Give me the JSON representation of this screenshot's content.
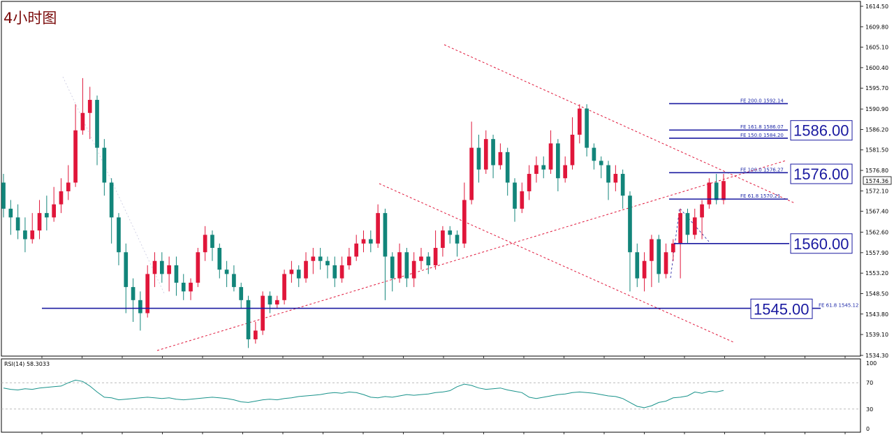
{
  "title": "4小时图",
  "price_tag": "1574.36",
  "rsi_label": "RSI(14) 58.3033",
  "colors": {
    "up": "#e0163a",
    "down": "#12857a",
    "line_blue": "#1a1aa0",
    "dash_red": "#e0163a",
    "rsi_line": "#17928a"
  },
  "chart_data": {
    "type": "candlestick",
    "title": "4小时图",
    "ylim": [
      1534.3,
      1614.5
    ],
    "y_ticks": [
      "1614.50",
      "1609.80",
      "1605.10",
      "1600.40",
      "1595.70",
      "1590.90",
      "1586.20",
      "1581.50",
      "1576.80",
      "1572.10",
      "1567.40",
      "1562.60",
      "1557.90",
      "1553.20",
      "1548.50",
      "1543.80",
      "1539.10",
      "1534.30"
    ],
    "current_price": 1574.36,
    "candles": [
      [
        1574,
        1568,
        1576,
        1566
      ],
      [
        1568,
        1566,
        1570,
        1562
      ],
      [
        1566,
        1563,
        1569,
        1561
      ],
      [
        1563,
        1561,
        1566,
        1558
      ],
      [
        1561,
        1563,
        1567,
        1560
      ],
      [
        1563,
        1567,
        1570,
        1561
      ],
      [
        1567,
        1566,
        1571,
        1563
      ],
      [
        1566,
        1569,
        1573,
        1565
      ],
      [
        1569,
        1572,
        1575,
        1567
      ],
      [
        1572,
        1574,
        1578,
        1570
      ],
      [
        1574,
        1586,
        1592,
        1573
      ],
      [
        1586,
        1590,
        1598,
        1585
      ],
      [
        1590,
        1593,
        1596,
        1584
      ],
      [
        1593,
        1582,
        1594,
        1578
      ],
      [
        1582,
        1574,
        1584,
        1571
      ],
      [
        1574,
        1566,
        1575,
        1560
      ],
      [
        1566,
        1558,
        1567,
        1555
      ],
      [
        1558,
        1550,
        1560,
        1544
      ],
      [
        1550,
        1547,
        1552,
        1542
      ],
      [
        1547,
        1544,
        1549,
        1540
      ],
      [
        1544,
        1553,
        1555,
        1543
      ],
      [
        1553,
        1556,
        1558,
        1550
      ],
      [
        1556,
        1553,
        1558,
        1551
      ],
      [
        1553,
        1555,
        1557,
        1549
      ],
      [
        1555,
        1551,
        1557,
        1548
      ],
      [
        1551,
        1549,
        1553,
        1547
      ],
      [
        1549,
        1551,
        1552,
        1547
      ],
      [
        1551,
        1558,
        1559,
        1550
      ],
      [
        1558,
        1562,
        1564,
        1556
      ],
      [
        1562,
        1559,
        1563,
        1556
      ],
      [
        1559,
        1554,
        1560,
        1552
      ],
      [
        1554,
        1553,
        1556,
        1550
      ],
      [
        1553,
        1550,
        1555,
        1549
      ],
      [
        1550,
        1547,
        1551,
        1545
      ],
      [
        1547,
        1538,
        1548,
        1536
      ],
      [
        1538,
        1540,
        1542,
        1537
      ],
      [
        1540,
        1548,
        1549,
        1539
      ],
      [
        1548,
        1546,
        1549,
        1544
      ],
      [
        1546,
        1547,
        1548,
        1545
      ],
      [
        1547,
        1553,
        1554,
        1546
      ],
      [
        1553,
        1554,
        1556,
        1551
      ],
      [
        1554,
        1552,
        1555,
        1550
      ],
      [
        1552,
        1556,
        1558,
        1551
      ],
      [
        1556,
        1557,
        1559,
        1553
      ],
      [
        1557,
        1556,
        1559,
        1554
      ],
      [
        1556,
        1555,
        1557,
        1552
      ],
      [
        1555,
        1552,
        1557,
        1550
      ],
      [
        1552,
        1555,
        1557,
        1551
      ],
      [
        1555,
        1557,
        1559,
        1554
      ],
      [
        1557,
        1560,
        1562,
        1556
      ],
      [
        1560,
        1561,
        1563,
        1558
      ],
      [
        1561,
        1560,
        1563,
        1558
      ],
      [
        1560,
        1567,
        1569,
        1559
      ],
      [
        1567,
        1557,
        1568,
        1547
      ],
      [
        1557,
        1552,
        1558,
        1549
      ],
      [
        1552,
        1558,
        1560,
        1551
      ],
      [
        1558,
        1552,
        1559,
        1550
      ],
      [
        1552,
        1556,
        1558,
        1550
      ],
      [
        1556,
        1557,
        1559,
        1554
      ],
      [
        1557,
        1555,
        1558,
        1553
      ],
      [
        1555,
        1559,
        1563,
        1554
      ],
      [
        1559,
        1563,
        1564,
        1557
      ],
      [
        1563,
        1562,
        1564,
        1560
      ],
      [
        1562,
        1560,
        1563,
        1557
      ],
      [
        1560,
        1570,
        1574,
        1559
      ],
      [
        1570,
        1582,
        1588,
        1569
      ],
      [
        1582,
        1577,
        1585,
        1574
      ],
      [
        1577,
        1584,
        1586,
        1576
      ],
      [
        1584,
        1578,
        1585,
        1575
      ],
      [
        1578,
        1581,
        1583,
        1577
      ],
      [
        1581,
        1574,
        1582,
        1571
      ],
      [
        1574,
        1568,
        1575,
        1565
      ],
      [
        1568,
        1572,
        1574,
        1567
      ],
      [
        1572,
        1576,
        1578,
        1570
      ],
      [
        1576,
        1578,
        1580,
        1574
      ],
      [
        1578,
        1577,
        1580,
        1575
      ],
      [
        1577,
        1583,
        1586,
        1576
      ],
      [
        1583,
        1575,
        1584,
        1572
      ],
      [
        1575,
        1578,
        1580,
        1574
      ],
      [
        1578,
        1585,
        1589,
        1577
      ],
      [
        1585,
        1591,
        1592,
        1583
      ],
      [
        1591,
        1582,
        1592,
        1580
      ],
      [
        1582,
        1579,
        1583,
        1577
      ],
      [
        1579,
        1578,
        1580,
        1575
      ],
      [
        1578,
        1574,
        1579,
        1570
      ],
      [
        1574,
        1576,
        1578,
        1572
      ],
      [
        1576,
        1571,
        1577,
        1568
      ],
      [
        1571,
        1558,
        1572,
        1549
      ],
      [
        1558,
        1552,
        1560,
        1550
      ],
      [
        1552,
        1556,
        1558,
        1549
      ],
      [
        1556,
        1561,
        1562,
        1550
      ],
      [
        1561,
        1553,
        1562,
        1551
      ],
      [
        1553,
        1558,
        1560,
        1552
      ],
      [
        1558,
        1560,
        1561,
        1556
      ],
      [
        1560,
        1567,
        1568,
        1552
      ],
      [
        1567,
        1562,
        1568,
        1560
      ],
      [
        1562,
        1566,
        1568,
        1561
      ],
      [
        1566,
        1569,
        1570,
        1561
      ],
      [
        1569,
        1574,
        1575,
        1568
      ],
      [
        1574,
        1570,
        1576,
        1569
      ],
      [
        1570,
        1574.36,
        1576,
        1569
      ]
    ],
    "fibonacci_extensions": [
      {
        "label": "FE 200.0  1592.14",
        "value": 1592.14
      },
      {
        "label": "FE 161.8  1586.07",
        "value": 1586.07
      },
      {
        "label": "FE 150.0  1584.20",
        "value": 1584.2
      },
      {
        "label": "FE 100.0  1576.27",
        "value": 1576.27
      },
      {
        "label": "FE 61.8  1570.21",
        "value": 1570.21
      },
      {
        "label": "FE 61.8  1545.12",
        "value": 1545.12
      }
    ],
    "key_levels": [
      {
        "label": "1586.00",
        "value": 1586.0
      },
      {
        "label": "1576.00",
        "value": 1576.0
      },
      {
        "label": "1560.00",
        "value": 1560.0
      },
      {
        "label": "1545.00",
        "value": 1545.0
      }
    ],
    "rsi": {
      "label": "RSI(14) 58.3033",
      "ylim": [
        0,
        100
      ],
      "y_ticks": [
        "100",
        "70",
        "30",
        "0"
      ],
      "levels": [
        70,
        30
      ],
      "values": [
        62,
        60,
        59,
        61,
        60,
        62,
        63,
        64,
        65,
        70,
        74,
        72,
        65,
        56,
        48,
        47,
        44,
        45,
        46,
        47,
        48,
        47,
        46,
        47,
        45,
        44,
        45,
        46,
        47,
        48,
        47,
        46,
        44,
        41,
        40,
        42,
        44,
        45,
        44,
        46,
        47,
        49,
        50,
        51,
        52,
        54,
        55,
        54,
        56,
        55,
        52,
        48,
        47,
        49,
        48,
        50,
        52,
        51,
        52,
        53,
        55,
        56,
        58,
        64,
        68,
        66,
        62,
        60,
        61,
        62,
        59,
        57,
        55,
        48,
        46,
        48,
        50,
        52,
        53,
        55,
        56,
        55,
        54,
        52,
        50,
        49,
        46,
        40,
        34,
        32,
        35,
        40,
        42,
        47,
        48,
        50,
        56,
        54,
        57,
        56,
        58.3
      ]
    }
  }
}
